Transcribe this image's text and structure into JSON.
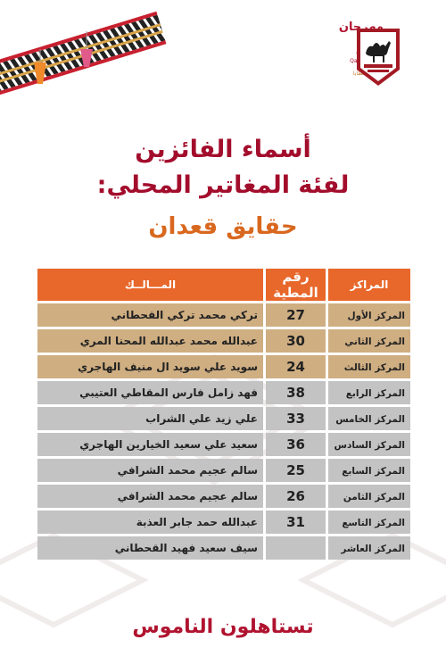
{
  "header": {
    "logo_line1": "مهرجان",
    "logo_line2": "قطر",
    "logo_line3": "للإبل",
    "logo_en": "Qatar Camel Festival",
    "logo_sub": "جريدة المطايا",
    "colors": {
      "brand": "#b0132f",
      "accent": "#e8672a"
    }
  },
  "title": {
    "line1": "أسماء الفائزين",
    "line2": "لفئة المغاتير المحلي:",
    "subtitle": "حقايق قعدان"
  },
  "table": {
    "headers": {
      "rank": "المراكز",
      "number": "رقم المطية",
      "owner": "المـــالــك"
    },
    "rows": [
      {
        "rank": "المركز الأول",
        "number": "27",
        "owner": "تركي محمد تركي القحطاني",
        "tier": "gold"
      },
      {
        "rank": "المركز الثاني",
        "number": "30",
        "owner": "عبدالله محمد عبدالله المحنا المري",
        "tier": "gold"
      },
      {
        "rank": "المركز الثالث",
        "number": "24",
        "owner": "سويد علي سويد ال منيف الهاجري",
        "tier": "gold"
      },
      {
        "rank": "المركز الرابع",
        "number": "38",
        "owner": "فهد زامل فارس المقاطي العتيبي",
        "tier": "gray"
      },
      {
        "rank": "المركز الخامس",
        "number": "33",
        "owner": "علي زيد علي الشراب",
        "tier": "gray"
      },
      {
        "rank": "المركز السادس",
        "number": "36",
        "owner": "سعيد علي سعيد الخيارين الهاجري",
        "tier": "gray"
      },
      {
        "rank": "المركز السابع",
        "number": "25",
        "owner": "سالم عجيم محمد الشرافي",
        "tier": "gray"
      },
      {
        "rank": "المركز الثامن",
        "number": "26",
        "owner": "سالم عجيم محمد الشرافي",
        "tier": "gray"
      },
      {
        "rank": "المركز التاسع",
        "number": "31",
        "owner": "عبدالله حمد جابر العذبة",
        "tier": "gray"
      },
      {
        "rank": "المركز العاشر",
        "number": "",
        "owner": "سيف سعيد فهيد القحطاني",
        "tier": "gray"
      }
    ]
  },
  "footer": {
    "text": "تستاهلون الناموس"
  }
}
